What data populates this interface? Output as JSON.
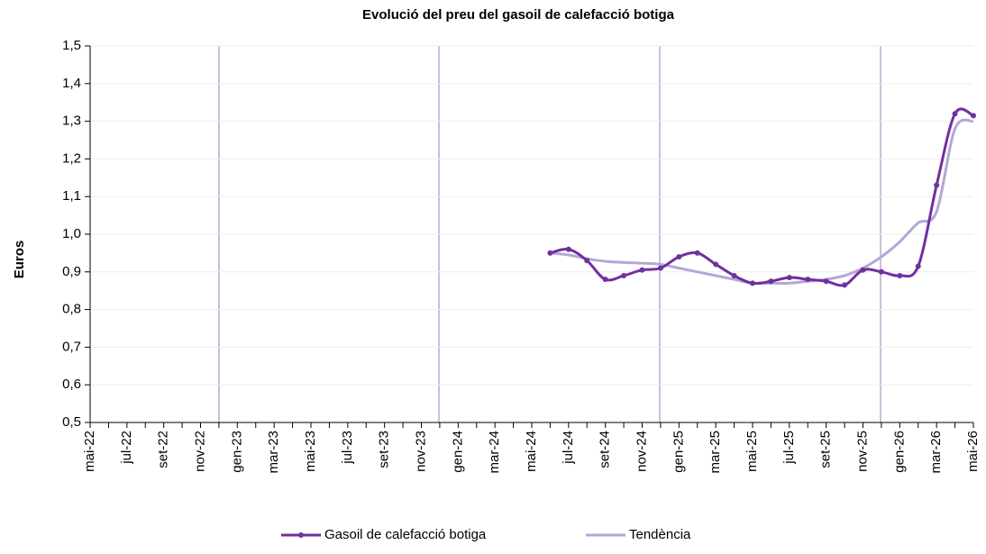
{
  "chart_data": {
    "type": "line",
    "title": "Evolució del preu del gasoil de calefacció botiga",
    "y_label": "Euros",
    "categories": [
      "mai-22",
      null,
      "jul-22",
      null,
      "set-22",
      null,
      "nov-22",
      null,
      "gen-23",
      null,
      "mar-23",
      null,
      "mai-23",
      null,
      "jul-23",
      null,
      "set-23",
      null,
      "nov-23",
      null,
      "gen-24",
      null,
      "mar-24",
      null,
      "mai-24",
      null,
      "jul-24",
      null,
      "set-24",
      null,
      "nov-24",
      null,
      "gen-25",
      null,
      "mar-25",
      null,
      "mai-25",
      null,
      "jul-25",
      null,
      "set-25",
      null,
      "nov-25",
      null,
      "gen-26",
      null,
      "mar-26",
      null,
      "mai-26"
    ],
    "series": [
      {
        "name": "Gasoil de calefacció botiga",
        "color": "#7030a0",
        "markers": true,
        "values": [
          null,
          null,
          null,
          null,
          null,
          null,
          null,
          null,
          null,
          null,
          null,
          null,
          null,
          null,
          null,
          null,
          null,
          null,
          null,
          null,
          null,
          null,
          null,
          null,
          null,
          0.95,
          0.96,
          0.93,
          0.88,
          0.89,
          0.905,
          0.91,
          0.94,
          0.95,
          0.92,
          0.89,
          0.87,
          0.875,
          0.885,
          0.88,
          0.875,
          0.865,
          0.905,
          0.9,
          0.89,
          0.915,
          1.13,
          1.32,
          1.315
        ]
      },
      {
        "name": "Tendència",
        "color": "#b4a7d6",
        "markers": false,
        "values": [
          null,
          null,
          null,
          null,
          null,
          null,
          null,
          null,
          null,
          null,
          null,
          null,
          null,
          null,
          null,
          null,
          null,
          null,
          null,
          null,
          null,
          null,
          null,
          null,
          null,
          0.95,
          0.945,
          0.935,
          0.928,
          0.925,
          0.923,
          0.92,
          0.91,
          0.9,
          0.89,
          0.88,
          0.87,
          0.87,
          0.87,
          0.875,
          0.88,
          0.89,
          0.91,
          0.94,
          0.98,
          1.03,
          1.06,
          1.28,
          1.3
        ]
      }
    ],
    "ylim": [
      0.5,
      1.5
    ],
    "yticks": [
      {
        "value": 0.5,
        "label": "0,5"
      },
      {
        "value": 0.6,
        "label": "0,6"
      },
      {
        "value": 0.7,
        "label": "0,7"
      },
      {
        "value": 0.8,
        "label": "0,8"
      },
      {
        "value": 0.9,
        "label": "0,9"
      },
      {
        "value": 1.0,
        "label": "1,0"
      },
      {
        "value": 1.1,
        "label": "1,1"
      },
      {
        "value": 1.2,
        "label": "1,2"
      },
      {
        "value": 1.3,
        "label": "1,3"
      },
      {
        "value": 1.4,
        "label": "1,4"
      },
      {
        "value": 1.5,
        "label": "1,5"
      }
    ],
    "grid": true,
    "legend": "bottom"
  }
}
